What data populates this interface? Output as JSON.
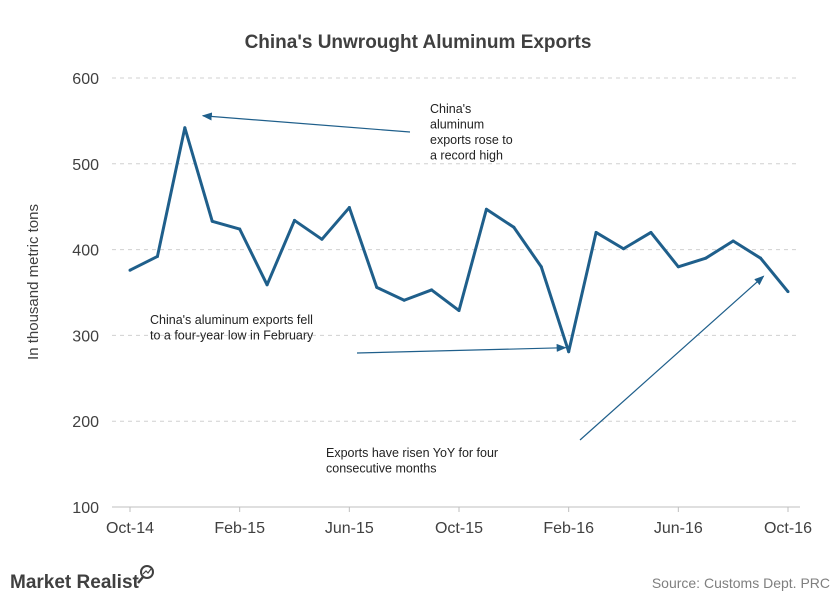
{
  "chart_data": {
    "type": "line",
    "title": "China's  Unwrought  Aluminum  Exports",
    "ylabel": "In thousand metric tons",
    "xlabel": "",
    "ylim": [
      100,
      600
    ],
    "yticks": [
      100,
      200,
      300,
      400,
      500,
      600
    ],
    "grid": true,
    "x_tick_labels": [
      "Oct-14",
      "Feb-15",
      "Jun-15",
      "Oct-15",
      "Feb-16",
      "Jun-16",
      "Oct-16"
    ],
    "x_tick_months": [
      0,
      4,
      8,
      12,
      16,
      20,
      24
    ],
    "series": [
      {
        "color": "#1f5f8b",
        "x": [
          "Oct-14",
          "Nov-14",
          "Dec-14",
          "Jan-15",
          "Feb-15",
          "Mar-15",
          "Apr-15",
          "May-15",
          "Jun-15",
          "Jul-15",
          "Aug-15",
          "Sep-15",
          "Oct-15",
          "Nov-15",
          "Dec-15",
          "Jan-16",
          "Feb-16",
          "Mar-16",
          "Apr-16",
          "May-16",
          "Jun-16",
          "Jul-16",
          "Aug-16",
          "Sep-16",
          "Oct-16"
        ],
        "values": [
          376,
          392,
          542,
          433,
          424,
          359,
          434,
          412,
          449,
          356,
          341,
          353,
          329,
          447,
          426,
          380,
          281,
          420,
          401,
          420,
          380,
          390,
          410,
          390,
          351
        ]
      }
    ],
    "annotations": [
      {
        "text_lines": [
          "China's",
          "aluminum",
          "exports rose to",
          "a record  high"
        ],
        "points_to": "Dec-14"
      },
      {
        "text_lines": [
          "China's  aluminum exports fell",
          "to a four-year  low in February"
        ],
        "points_to": "Feb-16"
      },
      {
        "text_lines": [
          "Exports have  risen YoY for four",
          "consecutive months"
        ],
        "points_to": "Sep-16"
      }
    ]
  },
  "footer": {
    "brand": "Market Realist",
    "source": "Source:  Customs Dept. PRC"
  }
}
